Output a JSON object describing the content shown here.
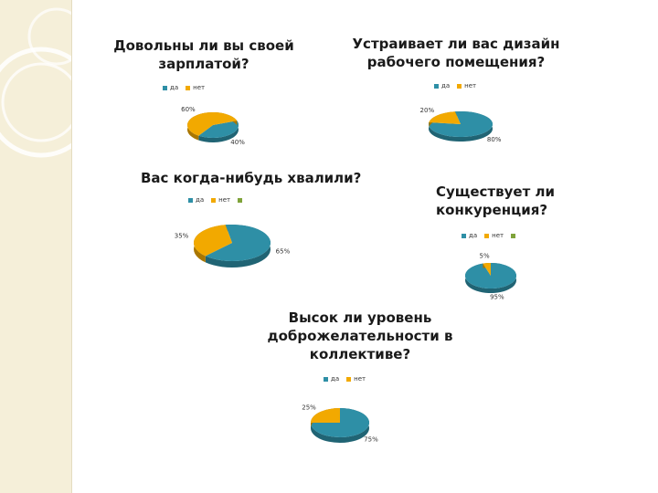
{
  "colors": {
    "yes": "#2e8fa6",
    "no": "#f2a900",
    "extra": "#7fa33a",
    "sidebar": "#f5efd9"
  },
  "legend": {
    "yes": "да",
    "no": "нет"
  },
  "chart_data": [
    {
      "type": "pie",
      "title": "Довольны ли вы своей зарплатой?",
      "categories": [
        "да",
        "нет"
      ],
      "values": [
        40,
        60
      ],
      "labels": [
        "40%",
        "60%"
      ],
      "legend_extra": false
    },
    {
      "type": "pie",
      "title": "Устраивает ли вас дизайн рабочего помещения?",
      "categories": [
        "да",
        "нет"
      ],
      "values": [
        80,
        20
      ],
      "labels": [
        "80%",
        "20%"
      ],
      "legend_extra": false
    },
    {
      "type": "pie",
      "title": "Вас когда-нибудь хвалили?",
      "categories": [
        "да",
        "нет"
      ],
      "values": [
        65,
        35
      ],
      "labels": [
        "65%",
        "35%"
      ],
      "legend_extra": true
    },
    {
      "type": "pie",
      "title": "Существует ли конкуренция?",
      "categories": [
        "да",
        "нет"
      ],
      "values": [
        95,
        5
      ],
      "labels": [
        "95%",
        "5%"
      ],
      "legend_extra": true
    },
    {
      "type": "pie",
      "title": "Высок ли уровень доброжелательности в коллективе?",
      "categories": [
        "да",
        "нет"
      ],
      "values": [
        75,
        25
      ],
      "labels": [
        "75%",
        "25%"
      ],
      "legend_extra": false
    }
  ]
}
